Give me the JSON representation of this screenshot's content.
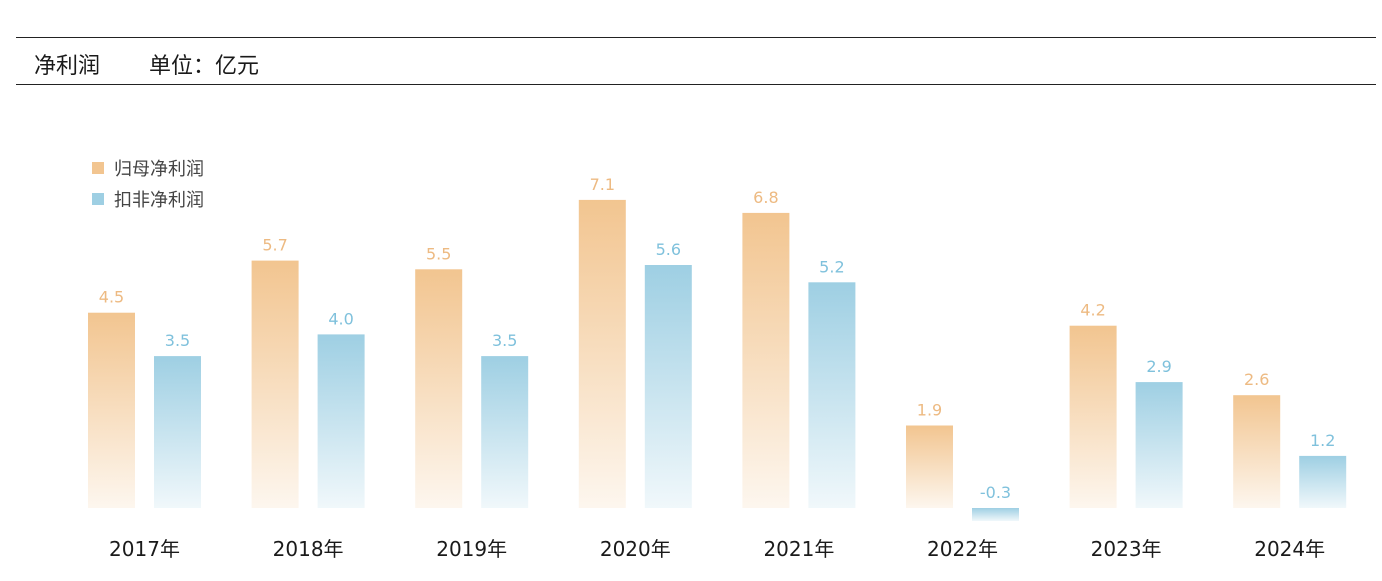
{
  "header": {
    "title": "净利润",
    "unit": "单位：亿元"
  },
  "chart_data": {
    "type": "bar",
    "title": "净利润",
    "unit": "单位：亿元",
    "categories": [
      "2017年",
      "2018年",
      "2019年",
      "2020年",
      "2021年",
      "2022年",
      "2023年",
      "2024年"
    ],
    "series": [
      {
        "name": "归母净利润",
        "values": [
          4.5,
          5.7,
          5.5,
          7.1,
          6.8,
          1.9,
          4.2,
          2.6
        ],
        "color": "#F2C590"
      },
      {
        "name": "扣非净利润",
        "values": [
          3.5,
          4.0,
          3.5,
          5.6,
          5.2,
          -0.3,
          2.9,
          1.2
        ],
        "color": "#9ECFE3"
      }
    ],
    "label_precision": 1,
    "grid": false,
    "legend_position": "top-left"
  }
}
